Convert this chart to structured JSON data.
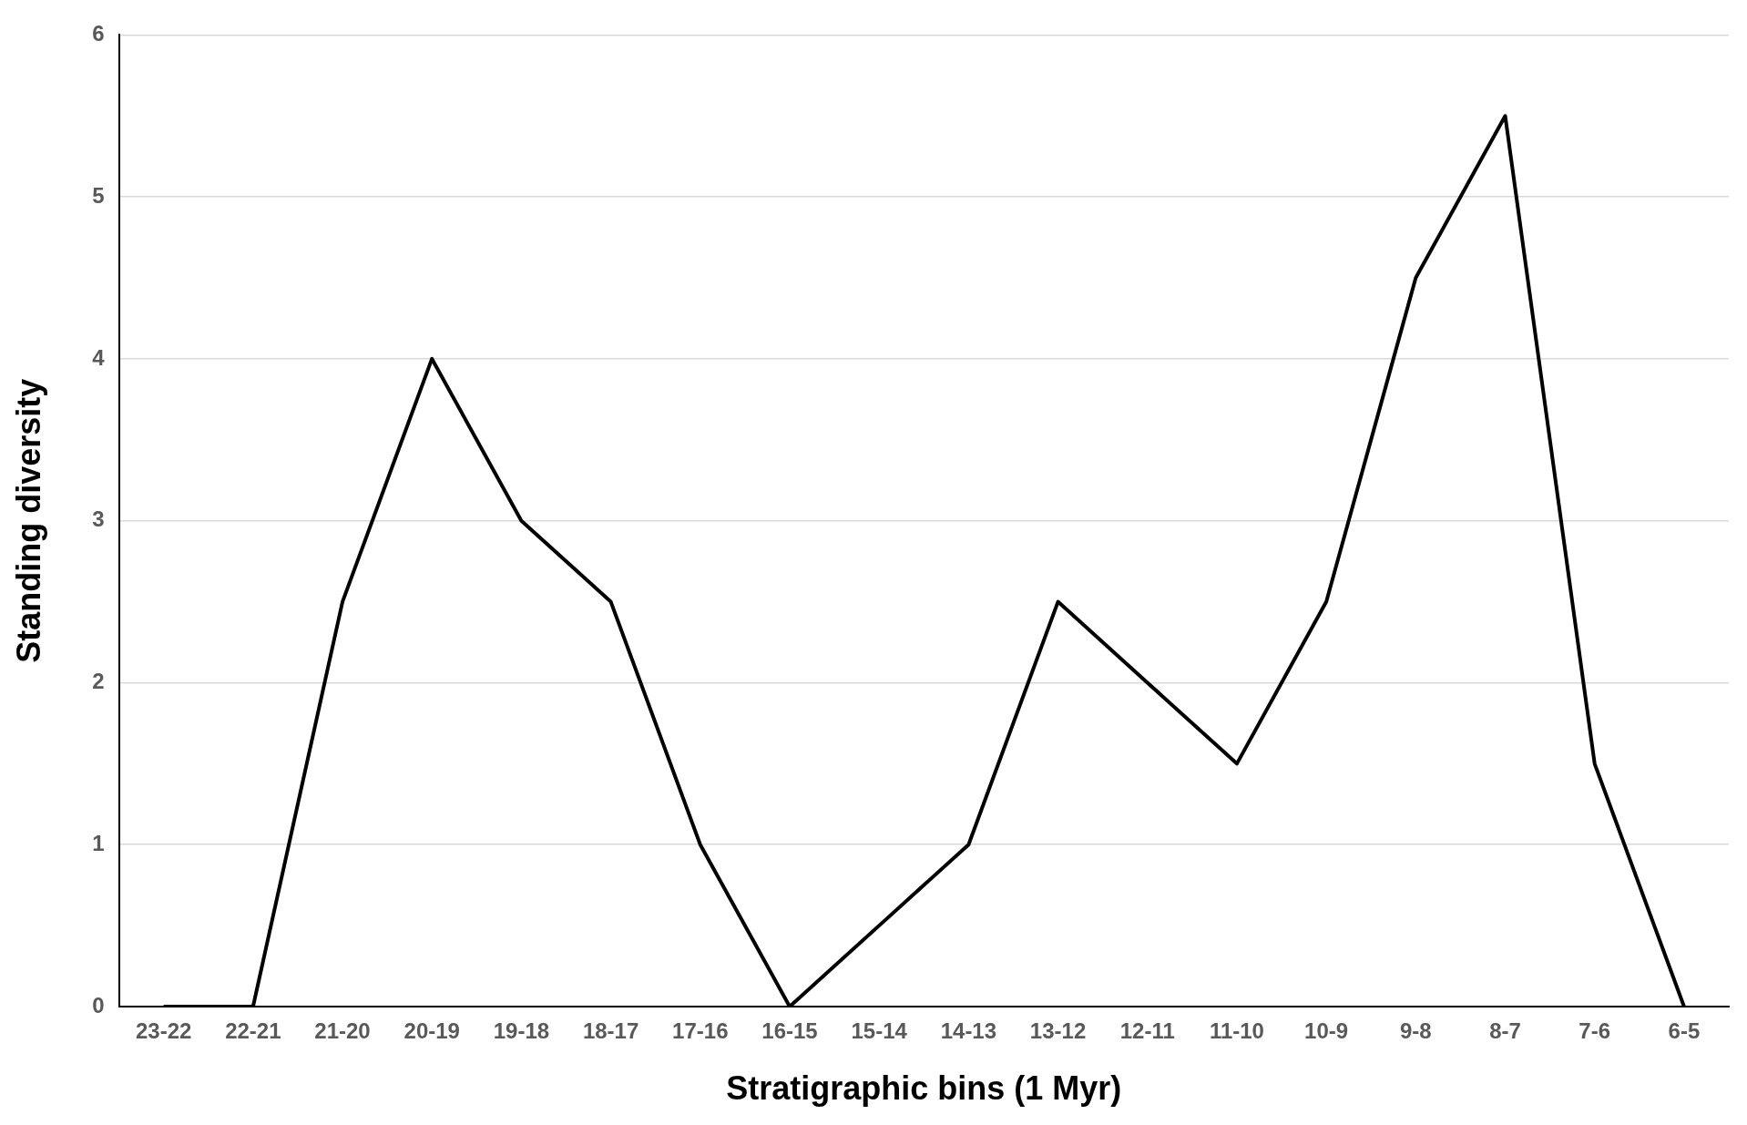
{
  "chart_data": {
    "type": "line",
    "xlabel": "Stratigraphic bins (1 Myr)",
    "ylabel": "Standing diversity",
    "categories": [
      "23-22",
      "22-21",
      "21-20",
      "20-19",
      "19-18",
      "18-17",
      "17-16",
      "16-15",
      "15-14",
      "14-13",
      "13-12",
      "12-11",
      "11-10",
      "10-9",
      "9-8",
      "8-7",
      "7-6",
      "6-5"
    ],
    "series": [
      {
        "color": "#000000",
        "values": [
          0,
          0,
          2.5,
          4,
          3,
          2.5,
          1,
          0,
          0.5,
          1,
          2.5,
          2,
          1.5,
          2.5,
          4.5,
          5.5,
          1.5,
          0
        ]
      }
    ],
    "ylim": [
      0,
      6
    ],
    "yticks": [
      0,
      1,
      2,
      3,
      4,
      5,
      6
    ],
    "grid": "y",
    "legend": false,
    "marker": "none",
    "line_style": "solid"
  }
}
